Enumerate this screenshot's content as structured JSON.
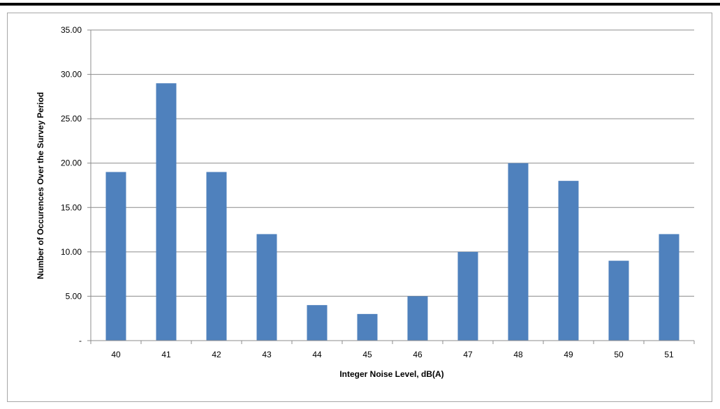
{
  "chart_data": {
    "type": "bar",
    "categories": [
      "40",
      "41",
      "42",
      "43",
      "44",
      "45",
      "46",
      "47",
      "48",
      "49",
      "50",
      "51"
    ],
    "values": [
      19,
      29,
      19,
      12,
      4,
      3,
      5,
      10,
      20,
      18,
      9,
      12
    ],
    "title": "",
    "xlabel": "Integer Noise Level, dB(A)",
    "ylabel": "Number of Occurences Over the Survey Period",
    "ylim": [
      0,
      35
    ],
    "yticks": [
      0,
      5,
      10,
      15,
      20,
      25,
      30,
      35
    ],
    "ytick_labels": [
      "-",
      "5.00",
      "10.00",
      "15.00",
      "20.00",
      "25.00",
      "30.00",
      "35.00"
    ],
    "grid": "horizontal",
    "legend": "none",
    "colors": {
      "bar": "#4f81bd",
      "grid": "#8c8c8c",
      "axis": "#8c8c8c"
    }
  }
}
